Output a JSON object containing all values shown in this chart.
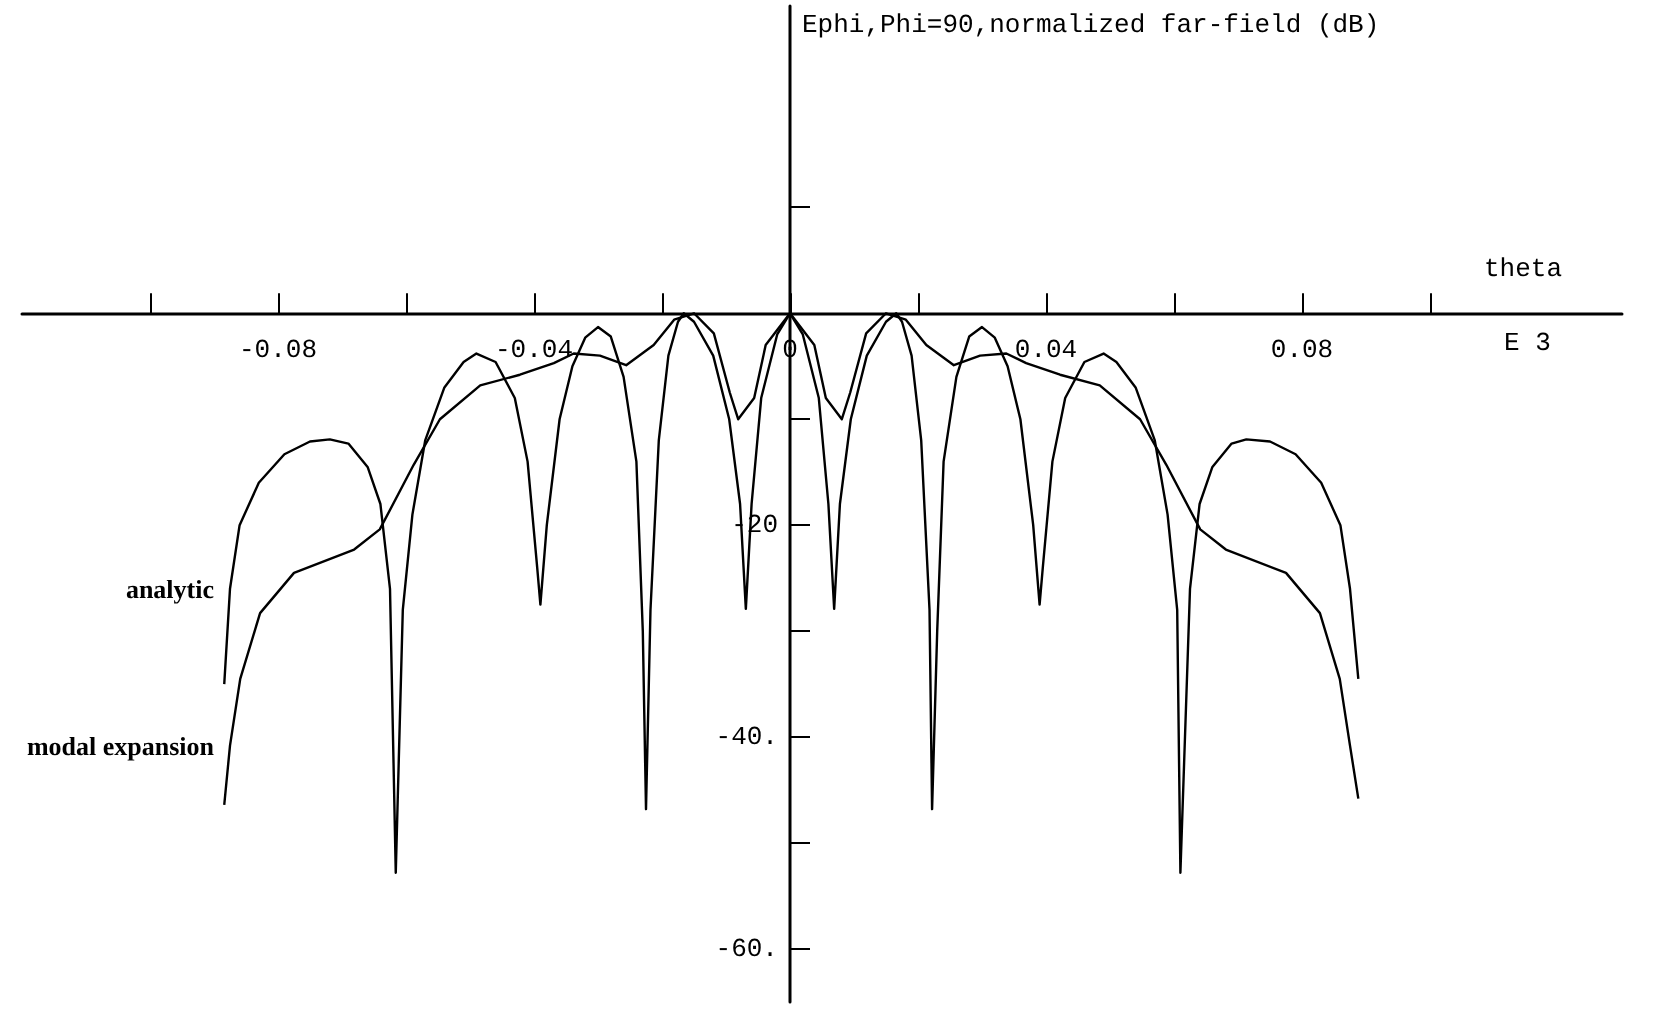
{
  "chart_data": {
    "type": "line",
    "ylabel": "Ephi,Phi=90,normalized far-field (dB)",
    "xlabel": "theta",
    "annotations": [
      "E 3"
    ],
    "xlim": [
      -0.12,
      0.13
    ],
    "ylim": [
      -65,
      29
    ],
    "xticks": [
      {
        "value": -0.1,
        "label": null
      },
      {
        "value": -0.08,
        "label": "-0.08"
      },
      {
        "value": -0.06,
        "label": null
      },
      {
        "value": -0.04,
        "label": "-0.04"
      },
      {
        "value": -0.02,
        "label": null
      },
      {
        "value": 0,
        "label": "0"
      },
      {
        "value": 0.02,
        "label": null
      },
      {
        "value": 0.04,
        "label": "0.04"
      },
      {
        "value": 0.06,
        "label": null
      },
      {
        "value": 0.08,
        "label": "0.08"
      },
      {
        "value": 0.1,
        "label": null
      }
    ],
    "yticks": [
      {
        "value": 10,
        "label": null
      },
      {
        "value": -10,
        "label": null
      },
      {
        "value": -20,
        "label": "-20"
      },
      {
        "value": -30,
        "label": null
      },
      {
        "value": -40,
        "label": "-40."
      },
      {
        "value": -50,
        "label": null
      },
      {
        "value": -60,
        "label": "-60."
      }
    ],
    "grid": false,
    "legend": false,
    "marker": "none",
    "line_style": "solid",
    "series": [
      {
        "name": "analytic",
        "color": "#000000",
        "x": [
          -0.0884,
          -0.0875,
          -0.086,
          -0.083,
          -0.079,
          -0.075,
          -0.0719,
          -0.069,
          -0.066,
          -0.064,
          -0.0625,
          -0.0616,
          -0.0605,
          -0.059,
          -0.057,
          -0.054,
          -0.051,
          -0.049,
          -0.046,
          -0.043,
          -0.041,
          -0.0395,
          -0.039,
          -0.038,
          -0.036,
          -0.034,
          -0.032,
          -0.03,
          -0.028,
          -0.026,
          -0.024,
          -0.023,
          -0.0225,
          -0.0218,
          -0.0205,
          -0.019,
          -0.0175,
          -0.0166,
          -0.015,
          -0.012,
          -0.0095,
          -0.0078,
          -0.0069,
          -0.006,
          -0.0045,
          -0.002,
          0,
          0.002,
          0.0045,
          0.006,
          0.0069,
          0.0078,
          0.0095,
          0.012,
          0.015,
          0.0166,
          0.0175,
          0.019,
          0.0205,
          0.0218,
          0.0222,
          0.023,
          0.024,
          0.026,
          0.028,
          0.03,
          0.032,
          0.034,
          0.036,
          0.038,
          0.039,
          0.0395,
          0.041,
          0.043,
          0.046,
          0.049,
          0.051,
          0.054,
          0.057,
          0.059,
          0.0605,
          0.061,
          0.0625,
          0.064,
          0.066,
          0.069,
          0.0713,
          0.075,
          0.079,
          0.083,
          0.086,
          0.0875,
          0.0888
        ],
        "values": [
          -35,
          -26,
          -20,
          -16,
          -13.3,
          -12.1,
          -11.9,
          -12.3,
          -14.5,
          -18,
          -26,
          -52.8,
          -28,
          -19,
          -12,
          -7,
          -4.6,
          -3.8,
          -4.6,
          -8,
          -14,
          -24,
          -27.5,
          -20,
          -10,
          -5,
          -2.3,
          -1.3,
          -2.2,
          -6,
          -14,
          -30,
          -46.8,
          -28,
          -12,
          -4,
          -0.8,
          0,
          -0.8,
          -4,
          -10,
          -18,
          -27.9,
          -18,
          -8,
          -2,
          0,
          -2,
          -8,
          -18,
          -27.9,
          -18,
          -10,
          -4,
          -0.8,
          0,
          -0.8,
          -4,
          -12,
          -28,
          -46.8,
          -30,
          -14,
          -6,
          -2.2,
          -1.3,
          -2.3,
          -5,
          -10,
          -20,
          -27.5,
          -24,
          -14,
          -8,
          -4.6,
          -3.8,
          -4.6,
          -7,
          -12,
          -19,
          -28,
          -52.8,
          -26,
          -18,
          -14.5,
          -12.3,
          -11.9,
          -12.1,
          -13.3,
          -16,
          -20,
          -26,
          -34.5
        ]
      },
      {
        "name": "modal expansion",
        "color": "#000000",
        "x": [
          -0.0884,
          -0.0875,
          -0.0859,
          -0.0828,
          -0.0775,
          -0.0681,
          -0.0641,
          -0.0588,
          -0.0547,
          -0.0484,
          -0.0422,
          -0.0369,
          -0.0338,
          -0.0297,
          -0.0256,
          -0.0213,
          -0.0181,
          -0.015,
          -0.0119,
          -0.0094,
          -0.0081,
          -0.0056,
          -0.0038,
          0,
          0.0038,
          0.0056,
          0.0081,
          0.0094,
          0.0119,
          0.015,
          0.0181,
          0.0213,
          0.0256,
          0.0297,
          0.0338,
          0.0369,
          0.0422,
          0.0484,
          0.0547,
          0.0588,
          0.0641,
          0.0681,
          0.0775,
          0.0828,
          0.0859,
          0.0875,
          0.0888
        ],
        "values": [
          -46.4,
          -40.8,
          -34.5,
          -28.3,
          -24.5,
          -22.3,
          -20.4,
          -14.3,
          -10,
          -6.8,
          -5.8,
          -4.7,
          -3.8,
          -4,
          -4.9,
          -3,
          -0.6,
          0,
          -1.9,
          -7.5,
          -10,
          -8,
          -3,
          0,
          -3,
          -8,
          -10,
          -7.5,
          -1.9,
          0,
          -0.6,
          -3,
          -4.9,
          -4,
          -3.8,
          -4.7,
          -5.8,
          -6.8,
          -10,
          -14.3,
          -20.4,
          -22.3,
          -24.5,
          -28.3,
          -34.5,
          -40.8,
          -45.8
        ]
      }
    ]
  }
}
